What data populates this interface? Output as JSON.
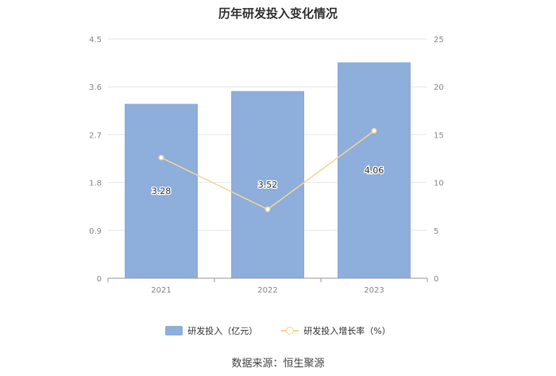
{
  "chart_data": {
    "type": "bar",
    "title": "历年研发投入变化情况",
    "categories": [
      "2021",
      "2022",
      "2023"
    ],
    "series": [
      {
        "name": "研发投入（亿元）",
        "type": "bar",
        "axis": "left",
        "values": [
          3.28,
          3.52,
          4.06
        ],
        "labels": [
          "3.28",
          "3.52",
          "4.06"
        ],
        "color": "#8eaedb"
      },
      {
        "name": "研发投入增长率（%）",
        "type": "line",
        "axis": "right",
        "values": [
          12.6,
          7.2,
          15.4
        ],
        "color": "#f5d596"
      }
    ],
    "y_left": {
      "ylim": [
        0,
        4.5
      ],
      "ticks": [
        "0",
        "0.9",
        "1.8",
        "2.7",
        "3.6",
        "4.5"
      ]
    },
    "y_right": {
      "ylim": [
        0,
        25
      ],
      "ticks": [
        "0",
        "5",
        "10",
        "15",
        "20",
        "25"
      ]
    },
    "grid": true,
    "legend": "bottom-center"
  },
  "source": "数据来源：恒生聚源"
}
